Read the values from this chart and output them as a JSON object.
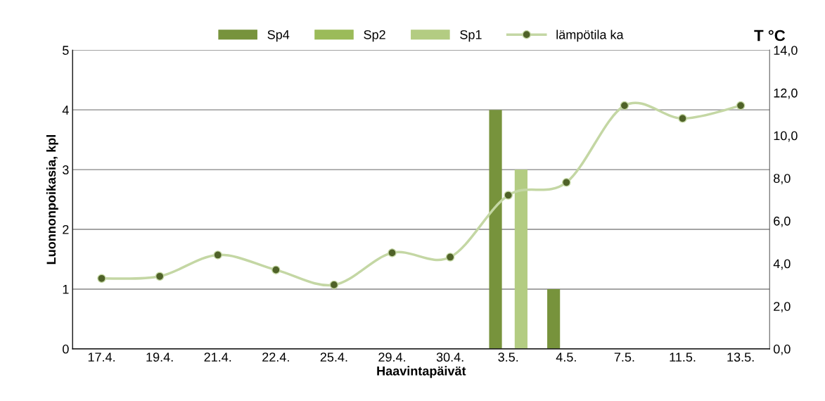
{
  "chart_data": {
    "type": "bar",
    "xlabel": "Haavintapäivät",
    "ylabel": "Luonnonpoikasia, kpl",
    "y2label": "T °C",
    "categories": [
      "17.4.",
      "19.4.",
      "21.4.",
      "22.4.",
      "25.4.",
      "29.4.",
      "30.4.",
      "3.5.",
      "4.5.",
      "7.5.",
      "11.5.",
      "13.5."
    ],
    "series": [
      {
        "name": "Sp4",
        "color": "#77933c",
        "values": [
          0,
          0,
          0,
          0,
          0,
          0,
          0,
          4,
          1,
          0,
          0,
          0
        ]
      },
      {
        "name": "Sp2",
        "color": "#9bbb59",
        "values": [
          0,
          0,
          0,
          0,
          0,
          0,
          0,
          0,
          0,
          0,
          0,
          0
        ]
      },
      {
        "name": "Sp1",
        "color": "#b3cc82",
        "values": [
          0,
          0,
          0,
          0,
          0,
          0,
          0,
          3,
          0,
          0,
          0,
          0
        ]
      },
      {
        "name": "lämpötila ka",
        "type": "line",
        "axis": "y2",
        "color": "#c4d7a4",
        "marker": "circle",
        "values": [
          3.3,
          3.4,
          4.4,
          3.7,
          3.0,
          4.5,
          4.3,
          7.2,
          7.8,
          11.4,
          10.8,
          11.4
        ]
      }
    ],
    "ylim": [
      0,
      5
    ],
    "yticks": [
      0,
      1,
      2,
      3,
      4,
      5
    ],
    "y2lim": [
      0,
      14
    ],
    "y2ticks": [
      {
        "value": 0,
        "label": "0,0"
      },
      {
        "value": 2,
        "label": "2,0"
      },
      {
        "value": 4,
        "label": "4,0"
      },
      {
        "value": 6,
        "label": "6,0"
      },
      {
        "value": 8,
        "label": "8,0"
      },
      {
        "value": 10,
        "label": "10,0"
      },
      {
        "value": 12,
        "label": "12,0"
      },
      {
        "value": 14,
        "label": "14,0"
      }
    ],
    "grid": "y",
    "legend": "top"
  }
}
